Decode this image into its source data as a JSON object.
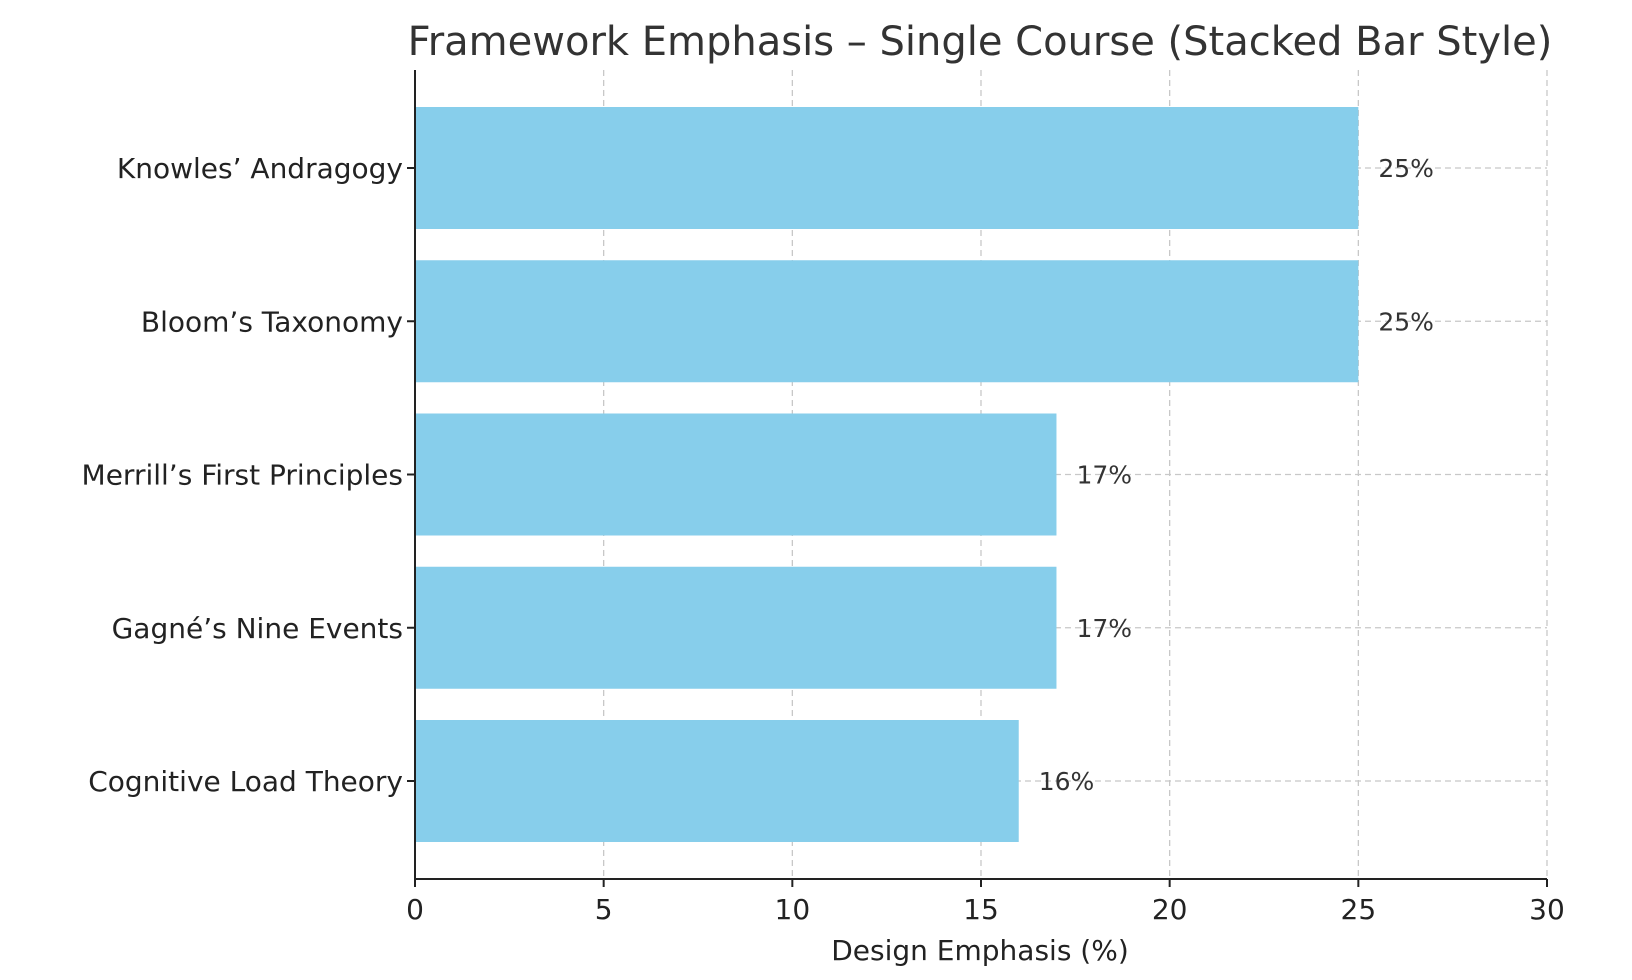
{
  "chart_data": {
    "type": "bar",
    "orientation": "horizontal",
    "title": "Framework Emphasis – Single Course (Stacked Bar Style)",
    "xlabel": "Design Emphasis (%)",
    "ylabel": "",
    "categories": [
      "Knowles’ Andragogy",
      "Bloom’s Taxonomy",
      "Merrill’s First Principles",
      "Gagné’s Nine Events",
      "Cognitive Load Theory"
    ],
    "values": [
      25,
      25,
      17,
      17,
      16
    ],
    "data_labels": [
      "25%",
      "25%",
      "17%",
      "17%",
      "16%"
    ],
    "xlim": [
      0,
      30
    ],
    "xticks": [
      0,
      5,
      10,
      15,
      20,
      25,
      30
    ],
    "grid": true,
    "bar_color": "#87CEEB"
  }
}
